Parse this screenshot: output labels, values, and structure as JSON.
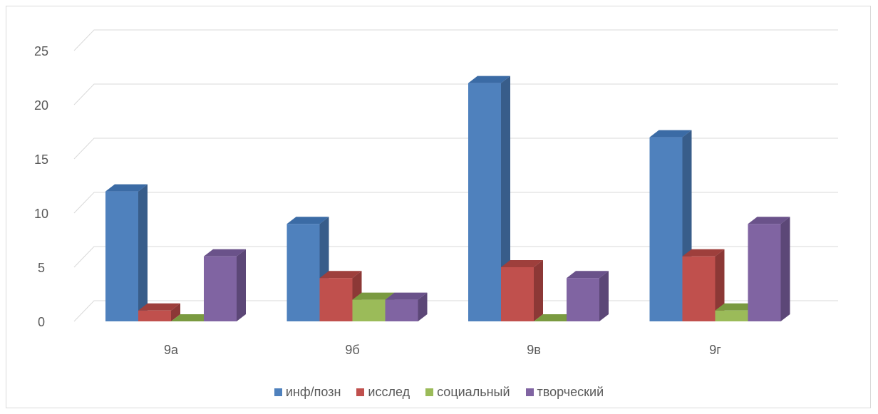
{
  "chart_data": {
    "type": "bar",
    "style": "3d-clustered-column",
    "categories": [
      "9а",
      "9б",
      "9в",
      "9г"
    ],
    "series": [
      {
        "name": "инф/позн",
        "values": [
          12,
          9,
          22,
          17
        ],
        "color": "#4f81bd",
        "side": "#385d8a",
        "top": "#3b6ba5"
      },
      {
        "name": "исслед",
        "values": [
          1,
          4,
          5,
          6
        ],
        "color": "#c0504d",
        "side": "#8c3836",
        "top": "#9e3f3c"
      },
      {
        "name": "социальный",
        "values": [
          0,
          2,
          0,
          1
        ],
        "color": "#9bbb59",
        "side": "#6f8a3c",
        "top": "#7a9a40"
      },
      {
        "name": "творческий",
        "values": [
          6,
          2,
          4,
          9
        ],
        "color": "#8064a2",
        "side": "#5c4777",
        "top": "#6a528a"
      }
    ],
    "yticks": [
      0,
      5,
      10,
      15,
      20,
      25
    ],
    "ylim": [
      0,
      25
    ],
    "grid": true,
    "legend_position": "bottom",
    "title": "",
    "xlabel": "",
    "ylabel": ""
  }
}
